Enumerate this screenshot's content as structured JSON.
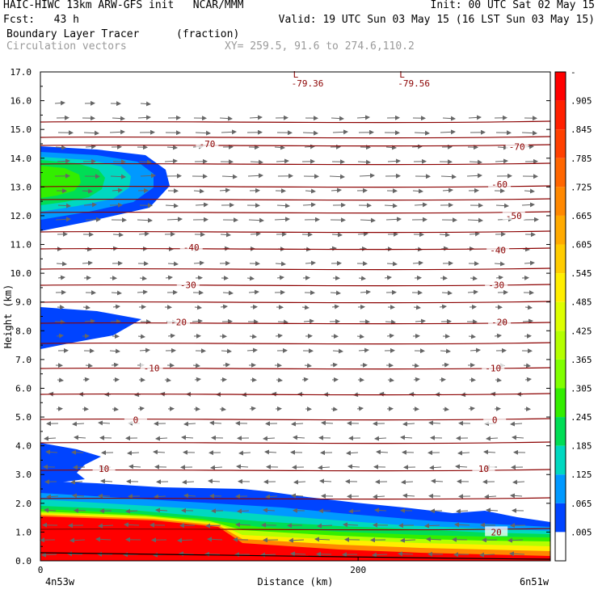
{
  "header": {
    "line1_left": "HAIC-HIWC 13km ARW-GFS init   NCAR/MMM",
    "line1_right": "Init: 00 UTC Sat 02 May 15",
    "line2_left": "Fcst:   43 h",
    "line2_right": "Valid: 19 UTC Sun 03 May 15 (16 LST Sun 03 May 15)",
    "line3_left": "Boundary Layer Tracer",
    "line3_units": "(fraction)",
    "line4_left": "Circulation vectors",
    "line4_xy": "XY= 259.5, 91.6 to 274.6,110.2"
  },
  "chart_data": {
    "type": "heatmap",
    "xlabel": "Distance (km)",
    "ylabel": "Height (km)",
    "xlim": [
      0,
      321
    ],
    "ylim": [
      0,
      17
    ],
    "x_ticks": [
      {
        "value": 0,
        "label": "0"
      },
      {
        "value": 200,
        "label": "200"
      }
    ],
    "x_end_labels": {
      "left": "4n53w",
      "right": "6n51w"
    },
    "y_ticks": [
      "0.0",
      "1.0",
      "2.0",
      "3.0",
      "4.0",
      "5.0",
      "6.0",
      "7.0",
      "8.0",
      "9.0",
      "10.0",
      "11.0",
      "12.0",
      "13.0",
      "14.0",
      "15.0",
      "16.0",
      "17.0"
    ],
    "colorbar": {
      "labels": [
        "-",
        ".905",
        ".845",
        ".785",
        ".725",
        ".665",
        ".605",
        ".545",
        ".485",
        ".425",
        ".365",
        ".305",
        ".245",
        ".185",
        ".125",
        ".065",
        ".005"
      ],
      "colors": [
        "#ff0000",
        "#ff2000",
        "#ff4000",
        "#ff6600",
        "#ff8800",
        "#ffaa00",
        "#ffcc00",
        "#ffee00",
        "#ddff00",
        "#b4ff00",
        "#80ff00",
        "#33ee00",
        "#00dd55",
        "#00d8c0",
        "#0099ff",
        "#0044ff",
        "#ffffff"
      ]
    },
    "temperature_labels": [
      {
        "label": "-70",
        "x": 105,
        "y": 14.5
      },
      {
        "label": "-70",
        "x": 300,
        "y": 14.4
      },
      {
        "label": "-60",
        "x": 289,
        "y": 13.1
      },
      {
        "label": "-50",
        "x": 298,
        "y": 12.0
      },
      {
        "label": "-40",
        "x": 95,
        "y": 10.9
      },
      {
        "label": "-40",
        "x": 288,
        "y": 10.8
      },
      {
        "label": "-30",
        "x": 93,
        "y": 9.6
      },
      {
        "label": "-30",
        "x": 287,
        "y": 9.6
      },
      {
        "label": "-20",
        "x": 87,
        "y": 8.3
      },
      {
        "label": "-20",
        "x": 289,
        "y": 8.3
      },
      {
        "label": "-10",
        "x": 70,
        "y": 6.7
      },
      {
        "label": "-10",
        "x": 285,
        "y": 6.7
      },
      {
        "label": "0",
        "x": 60,
        "y": 4.9
      },
      {
        "label": "0",
        "x": 286,
        "y": 4.9
      },
      {
        "label": "10",
        "x": 40,
        "y": 3.2
      },
      {
        "label": "10",
        "x": 279,
        "y": 3.2
      },
      {
        "label": "20",
        "x": 287,
        "y": 1.0
      }
    ],
    "minima": [
      {
        "letter": "L",
        "value": "-79.36",
        "x": 158,
        "y": 16.8
      },
      {
        "letter": "L",
        "value": "-79.56",
        "x": 225,
        "y": 16.8
      }
    ],
    "grid": false
  }
}
